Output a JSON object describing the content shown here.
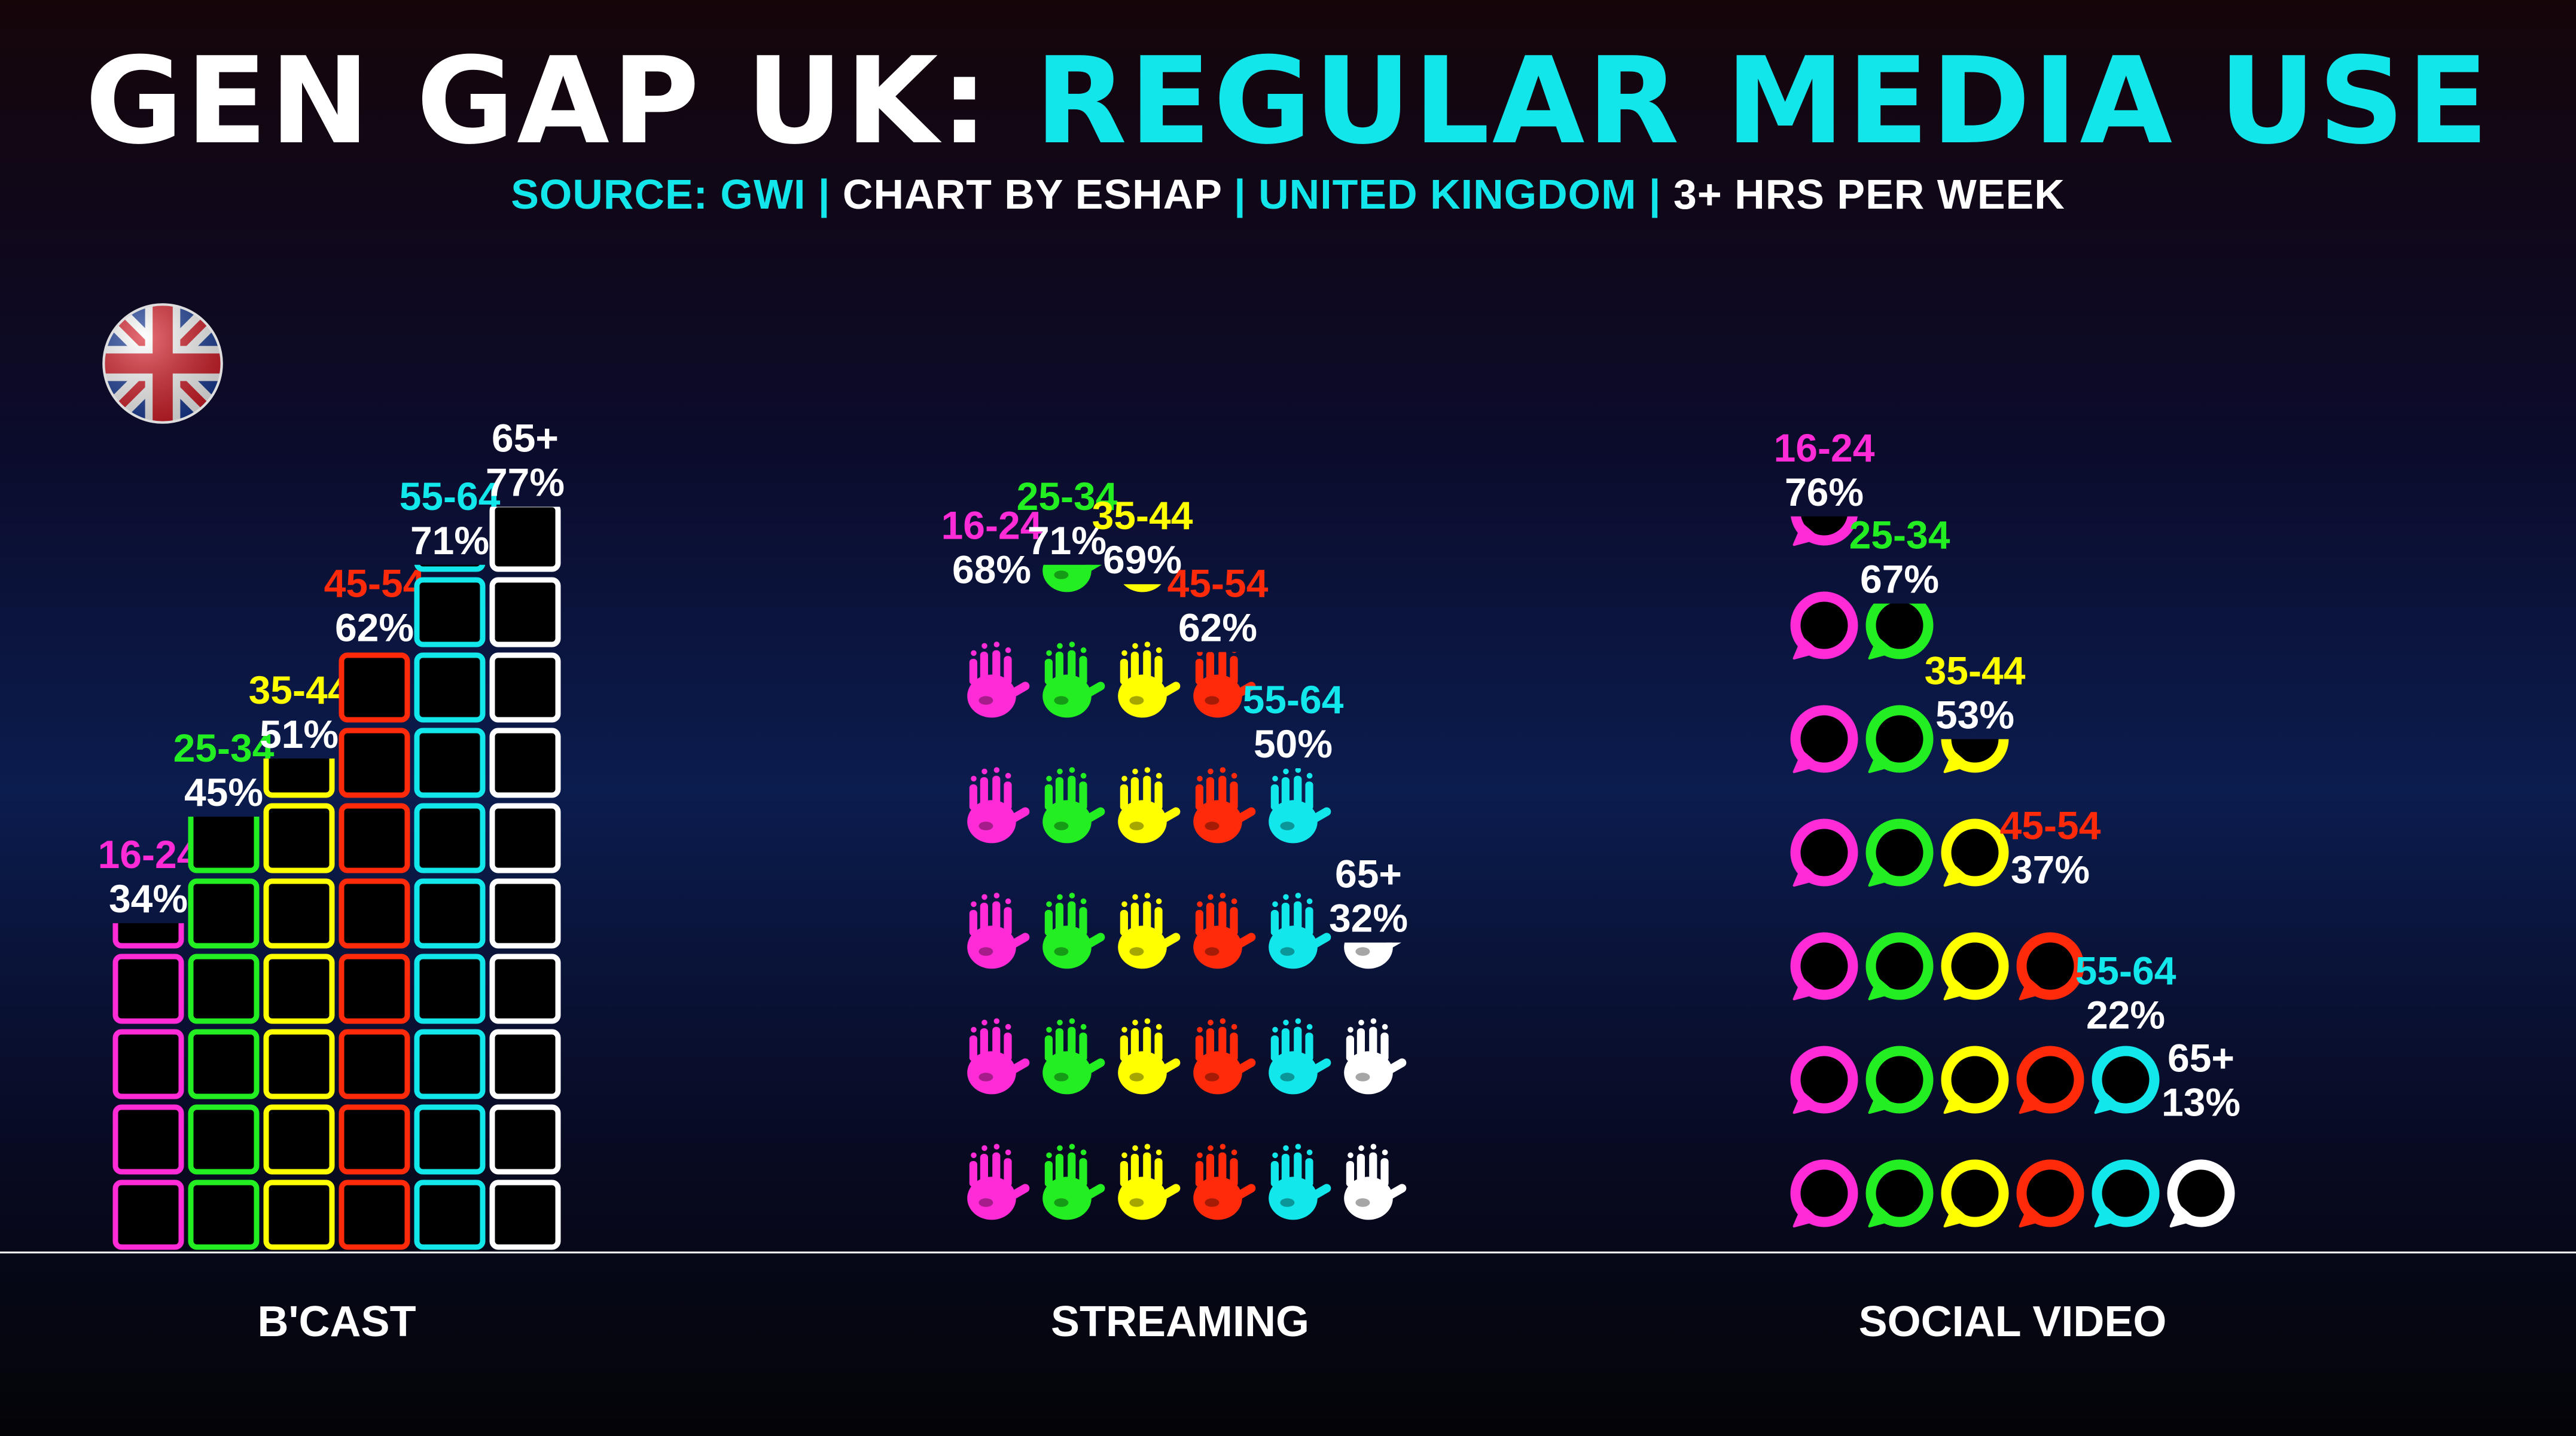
{
  "header": {
    "title_main": "GEN GAP UK: ",
    "title_accent": "REGULAR MEDIA USE",
    "subtitle": [
      {
        "text": "SOURCE: GWI",
        "color": "accent"
      },
      {
        "text": " | ",
        "color": "accent"
      },
      {
        "text": "CHART BY ESHAP",
        "color": "white"
      },
      {
        "text": " | ",
        "color": "accent"
      },
      {
        "text": "UNITED KINGDOM",
        "color": "accent"
      },
      {
        "text": " | ",
        "color": "accent"
      },
      {
        "text": "3+ HRS PER WEEK",
        "color": "white"
      }
    ]
  },
  "flag_icon": "uk-flag-icon",
  "colors": {
    "background": "#0b1c4e",
    "accent": "#13e6ea",
    "16-24": "#ff2bd6",
    "25-34": "#22ee22",
    "35-44": "#ffff00",
    "45-54": "#ff2a0a",
    "55-64": "#12e8ec",
    "65+": "#ffffff"
  },
  "chart_data": {
    "type": "bar",
    "categories": [
      "B'CAST",
      "STREAMING",
      "SOCIAL VIDEO"
    ],
    "ylim": [
      0,
      100
    ],
    "grid": false,
    "legend": "none",
    "series": [
      {
        "name": "16-24",
        "values": [
          34,
          68,
          76
        ]
      },
      {
        "name": "25-34",
        "values": [
          45,
          71,
          67
        ]
      },
      {
        "name": "35-44",
        "values": [
          51,
          69,
          53
        ]
      },
      {
        "name": "45-54",
        "values": [
          62,
          62,
          37
        ]
      },
      {
        "name": "55-64",
        "values": [
          71,
          50,
          22
        ]
      },
      {
        "name": "65+",
        "values": [
          77,
          32,
          13
        ]
      }
    ],
    "icons": [
      "tv-screen-icon",
      "handprint-icon",
      "speech-bubble-icon"
    ]
  }
}
